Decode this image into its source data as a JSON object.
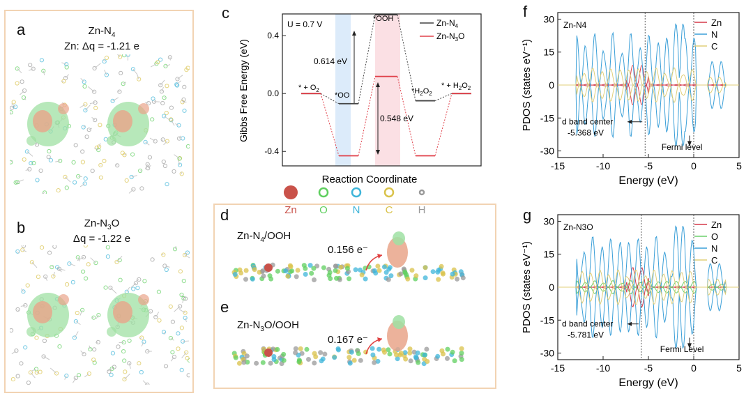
{
  "colors": {
    "frame_orange": "#f2d3b3",
    "zn": "#c9524a",
    "n4_black": "#444444",
    "n3o_red": "#e0404a",
    "pdos_zn": "#d63a4a",
    "pdos_n": "#3a9fd8",
    "pdos_c": "#e0cf7a",
    "pdos_o": "#6bd06b",
    "blue_band": "#dcebfa",
    "red_band": "#fbe0e4",
    "green_iso": "#9fe0a3",
    "orange_iso": "#e9a48a"
  },
  "panel_a": {
    "label": "a",
    "title": "Zn-N4",
    "subtitle": "Zn: Δq = -1.21 e"
  },
  "panel_b": {
    "label": "b",
    "title": "Zn-N3O",
    "subtitle": "Δq = -1.22 e"
  },
  "panel_c": {
    "label": "c",
    "u_label": "U = 0.7 V",
    "ylabel": "Gibbs Free Energy (eV)",
    "xlabel": "Reaction Coordinate",
    "yticks": [
      "0.4",
      "0.0",
      "-0.4"
    ],
    "legend": [
      "Zn-N4",
      "Zn-N3O"
    ],
    "states": [
      "* + O2",
      "*OO",
      "*OOH",
      "*H2O2",
      "* + H2O2"
    ],
    "annotation_1": "0.614 eV",
    "annotation_2": "0.548 eV"
  },
  "legend_atoms": {
    "items": [
      {
        "symbol": "Zn",
        "color": "#c9524a"
      },
      {
        "symbol": "O",
        "color": "#5fcf5f"
      },
      {
        "symbol": "N",
        "color": "#3fb5d9"
      },
      {
        "symbol": "C",
        "color": "#d9c24a"
      },
      {
        "symbol": "H",
        "color": "#999999"
      }
    ]
  },
  "panel_d": {
    "label": "d",
    "title": "Zn-N4/OOH",
    "charge": "0.156 e⁻"
  },
  "panel_e": {
    "label": "e",
    "title": "Zn-N3O/OOH",
    "charge": "0.167 e⁻"
  },
  "panel_f": {
    "label": "f",
    "inset": "Zn-N4",
    "legend": [
      "Zn",
      "N",
      "C"
    ],
    "yticks": [
      "30",
      "15",
      "0",
      "-15",
      "-30"
    ],
    "xticks": [
      "-15",
      "-10",
      "-5",
      "0",
      "5"
    ],
    "xlabel": "Energy (eV)",
    "ylabel": "PDOS (states eV⁻¹)",
    "dband_label": "d band center",
    "dband_value": "-5.368 eV",
    "fermi_label": "Fermi level"
  },
  "panel_g": {
    "label": "g",
    "inset": "Zn-N3O",
    "legend": [
      "Zn",
      "O",
      "N",
      "C"
    ],
    "yticks": [
      "30",
      "15",
      "0",
      "-15",
      "-30"
    ],
    "xticks": [
      "-15",
      "-10",
      "-5",
      "0",
      "5"
    ],
    "xlabel": "Energy (eV)",
    "ylabel": "PDOS (states eV⁻¹)",
    "dband_label": "d band center",
    "dband_value": "-5.781 eV",
    "fermi_label": "Fermi Level"
  },
  "chart_data": [
    {
      "type": "line",
      "title": "",
      "xlabel": "Reaction Coordinate",
      "ylabel": "Gibbs Free Energy (eV)",
      "ylim": [
        -0.5,
        0.55
      ],
      "categories": [
        "* + O2",
        "*OO",
        "*OOH",
        "*H2O2",
        "* + H2O2"
      ],
      "series": [
        {
          "name": "Zn-N4",
          "values": [
            0.0,
            -0.07,
            0.544,
            -0.05,
            0.0
          ]
        },
        {
          "name": "Zn-N3O",
          "values": [
            0.0,
            -0.43,
            0.118,
            -0.43,
            0.0
          ]
        }
      ]
    },
    {
      "type": "line",
      "title": "Zn-N4",
      "xlabel": "Energy (eV)",
      "ylabel": "PDOS (states eV⁻¹)",
      "xlim": [
        -15,
        5
      ],
      "ylim": [
        -33,
        33
      ],
      "series_names": [
        "Zn",
        "N",
        "C"
      ],
      "d_band_center": -5.368,
      "fermi_level": 0
    },
    {
      "type": "line",
      "title": "Zn-N3O",
      "xlabel": "Energy (eV)",
      "ylabel": "PDOS (states eV⁻¹)",
      "xlim": [
        -15,
        5
      ],
      "ylim": [
        -33,
        33
      ],
      "series_names": [
        "Zn",
        "O",
        "N",
        "C"
      ],
      "d_band_center": -5.781,
      "fermi_level": 0
    }
  ]
}
